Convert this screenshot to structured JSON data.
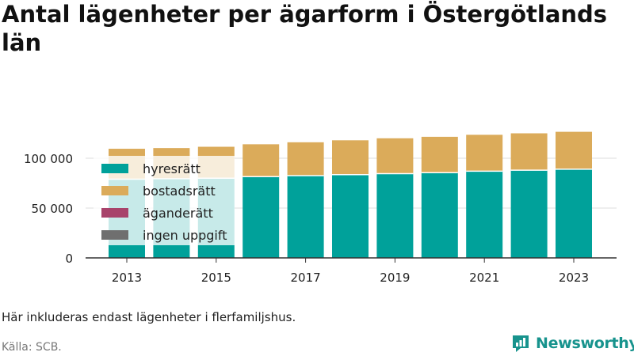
{
  "title": "Antal lägenheter per ägarform i Östergötlands län",
  "note": "Här inkluderas endast lägenheter i flerfamiljshus.",
  "source": "Källa: SCB.",
  "brand": "Newsworthy",
  "colors": {
    "hyresratt": "#00a19a",
    "bostadsratt": "#dbab5a",
    "aganderatt": "#a8436b",
    "ingen_uppgift": "#6f6f6f",
    "brand": "#17938d"
  },
  "chart_data": {
    "type": "bar",
    "stacked": true,
    "x": [
      2013,
      2014,
      2015,
      2016,
      2017,
      2018,
      2019,
      2020,
      2021,
      2022,
      2023
    ],
    "x_tick_labels": [
      "2013",
      "2015",
      "2017",
      "2019",
      "2021",
      "2023"
    ],
    "y_ticks": [
      0,
      50000,
      100000
    ],
    "y_tick_labels": [
      "0",
      "50 000",
      "100 000"
    ],
    "ylim": [
      0,
      135000
    ],
    "grid": true,
    "legend": "top-left",
    "series": [
      {
        "name": "hyresrätt",
        "values": [
          79000,
          79500,
          80000,
          81500,
          82500,
          83500,
          84500,
          85500,
          87000,
          88000,
          89000
        ]
      },
      {
        "name": "bostadsrätt",
        "values": [
          30500,
          30700,
          31500,
          32500,
          33500,
          34500,
          35500,
          36000,
          36500,
          37000,
          37500
        ]
      },
      {
        "name": "äganderätt",
        "values": [
          0,
          0,
          0,
          0,
          0,
          0,
          0,
          0,
          0,
          0,
          0
        ]
      },
      {
        "name": "ingen uppgift",
        "values": [
          0,
          0,
          0,
          0,
          0,
          0,
          0,
          0,
          0,
          0,
          0
        ]
      }
    ]
  }
}
